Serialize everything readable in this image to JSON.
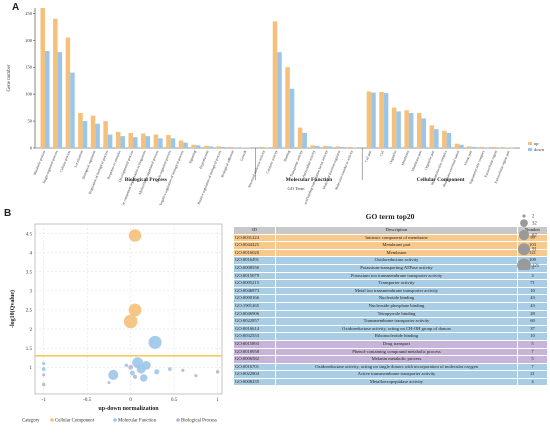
{
  "panel_a_label": "A",
  "panel_b_label": "B",
  "colors": {
    "up": "#f5c07a",
    "down": "#9cc6e8",
    "cc_row": "#f7c98c",
    "mf_row": "#a9cde4",
    "bp_row": "#c7b5d9",
    "threshold": "#f5c242",
    "cc_dot": "#f5c07a",
    "mf_dot": "#9cc6e8",
    "bp_dot": "#b9b3d6"
  },
  "chart_data": [
    {
      "type": "bar",
      "title": "",
      "ylabel": "Gene number",
      "xlabel": "GO Term",
      "ylim": [
        0,
        260
      ],
      "yticks": [
        0,
        50,
        100,
        150,
        200,
        250
      ],
      "legend": {
        "position": "right",
        "entries": [
          "up",
          "down"
        ]
      },
      "groups": [
        {
          "name": "Biological Process",
          "categories": [
            "Metabolic process",
            "Single-organism process",
            "Cellular process",
            "Localization",
            "Biological regulation",
            "Regulation of biological process",
            "Response to stimulus",
            "Developmental process",
            "Cellular component organization or biogenesis",
            "Multicellular organismal process",
            "Multi-organism process",
            "Negative regulation of biological process",
            "Signaling",
            "Reproduction",
            "Positive regulation of biological process",
            "Biological adhesion",
            "Growth"
          ],
          "up": [
            260,
            240,
            205,
            65,
            60,
            50,
            30,
            28,
            27,
            25,
            24,
            14,
            6,
            4,
            3,
            2,
            1
          ],
          "down": [
            180,
            178,
            140,
            50,
            45,
            25,
            22,
            20,
            22,
            18,
            18,
            10,
            5,
            3,
            2,
            1,
            1
          ]
        },
        {
          "name": "Molecular Function",
          "categories": [
            "Structural molecule activity",
            "Catalytic activity",
            "Binding",
            "Transporter activity",
            "Antioxidant activity",
            "Nucleic acid binding transcription factor activity",
            "Molecular function regulator",
            "Molecular transducer activity"
          ],
          "up": [
            2,
            235,
            150,
            38,
            5,
            4,
            3,
            2
          ],
          "down": [
            1,
            178,
            110,
            28,
            4,
            3,
            2,
            1
          ]
        },
        {
          "name": "Cellular Component",
          "categories": [
            "Cell part",
            "Cell",
            "Organelle",
            "Membrane",
            "Membrane part",
            "Organelle part",
            "Macromolecular complex",
            "Membrane-enclosed lumen",
            "Virion part",
            "Supramolecular complex",
            "Extracellular region",
            "Extracellular region part"
          ],
          "up": [
            105,
            104,
            75,
            70,
            65,
            42,
            32,
            8,
            3,
            2,
            2,
            1
          ],
          "down": [
            103,
            102,
            68,
            65,
            55,
            35,
            28,
            6,
            2,
            1,
            1,
            1
          ]
        }
      ]
    },
    {
      "type": "scatter",
      "title": "",
      "xlabel": "up-down normalization",
      "ylabel": "-log10(Qvalue)",
      "xlim": [
        -1.1,
        1.05
      ],
      "ylim": [
        0.3,
        4.75
      ],
      "xticks": [
        -1.0,
        -0.5,
        0.0,
        0.5,
        1.0
      ],
      "yticks": [
        1.0,
        1.5,
        2.0,
        2.5,
        3.0,
        3.5,
        4.0,
        4.5
      ],
      "threshold_y": 1.3,
      "size_legend": [
        2,
        32,
        62,
        91,
        121
      ],
      "category_legend": {
        "title": "Category",
        "entries": [
          "Cellular Component",
          "Molecular Function",
          "Biological Process"
        ]
      },
      "points": [
        {
          "x": 0.05,
          "y": 4.45,
          "size": 99,
          "category": "cc"
        },
        {
          "x": 0.05,
          "y": 2.5,
          "size": 103,
          "category": "cc"
        },
        {
          "x": 0.0,
          "y": 2.2,
          "size": 121,
          "category": "cc"
        },
        {
          "x": 0.28,
          "y": 1.65,
          "size": 109,
          "category": "mf"
        },
        {
          "x": 0.08,
          "y": 1.12,
          "size": 71,
          "category": "mf"
        },
        {
          "x": 0.18,
          "y": 1.05,
          "size": 43,
          "category": "mf"
        },
        {
          "x": 0.12,
          "y": 0.95,
          "size": 43,
          "category": "mf"
        },
        {
          "x": -0.05,
          "y": 1.05,
          "size": 3,
          "category": "mf"
        },
        {
          "x": 0.02,
          "y": 0.85,
          "size": 10,
          "category": "mf"
        },
        {
          "x": 0.15,
          "y": 0.72,
          "size": 28,
          "category": "mf"
        },
        {
          "x": 0.3,
          "y": 0.88,
          "size": 10,
          "category": "mf"
        },
        {
          "x": 0.45,
          "y": 0.95,
          "size": 4,
          "category": "mf"
        },
        {
          "x": -0.2,
          "y": 0.8,
          "size": 60,
          "category": "mf"
        },
        {
          "x": -1.0,
          "y": 1.1,
          "size": 2,
          "category": "mf"
        },
        {
          "x": -1.0,
          "y": 0.95,
          "size": 4,
          "category": "mf"
        },
        {
          "x": -1.0,
          "y": 0.8,
          "size": 2,
          "category": "bp"
        },
        {
          "x": -1.0,
          "y": 0.55,
          "size": 3,
          "category": "bp"
        },
        {
          "x": -0.25,
          "y": 0.6,
          "size": 2,
          "category": "mf"
        },
        {
          "x": 0.6,
          "y": 0.92,
          "size": 2,
          "category": "bp"
        },
        {
          "x": 0.75,
          "y": 0.78,
          "size": 2,
          "category": "bp"
        },
        {
          "x": 1.0,
          "y": 0.88,
          "size": 3,
          "category": "bp"
        },
        {
          "x": 0.0,
          "y": 1.0,
          "size": 8,
          "category": "bp"
        },
        {
          "x": 0.05,
          "y": 0.75,
          "size": 5,
          "category": "bp"
        }
      ]
    },
    {
      "type": "table",
      "title": "GO term top20",
      "columns": [
        "ID",
        "Description",
        "Number"
      ],
      "rows": [
        {
          "id": "GO:0031224",
          "desc": "Intrinsic component of membrane",
          "num": "99",
          "cat": "cc"
        },
        {
          "id": "GO:0044425",
          "desc": "Membrane part",
          "num": "103",
          "cat": "cc"
        },
        {
          "id": "GO:0016020",
          "desc": "Membrane",
          "num": "121",
          "cat": "cc"
        },
        {
          "id": "GO:0016491",
          "desc": "Oxidoreductase activity",
          "num": "109",
          "cat": "mf"
        },
        {
          "id": "GO:0008556",
          "desc": "Potassium-transporting ATPase activity",
          "num": "3",
          "cat": "mf"
        },
        {
          "id": "GO:0015079",
          "desc": "Potassium ion transmembrane transporter activity",
          "num": "3",
          "cat": "mf"
        },
        {
          "id": "GO:0005215",
          "desc": "Transporter activity",
          "num": "71",
          "cat": "mf"
        },
        {
          "id": "GO:0046873",
          "desc": "Metal ion transmembrane transporter activity",
          "num": "10",
          "cat": "mf"
        },
        {
          "id": "GO:0000166",
          "desc": "Nucleotide binding",
          "num": "43",
          "cat": "mf"
        },
        {
          "id": "GO:1901265",
          "desc": "Nucleoside phosphate binding",
          "num": "43",
          "cat": "mf"
        },
        {
          "id": "GO:0046906",
          "desc": "Tetrapyrrole binding",
          "num": "28",
          "cat": "mf"
        },
        {
          "id": "GO:0022857",
          "desc": "Transmembrane transporter activity",
          "num": "60",
          "cat": "mf"
        },
        {
          "id": "GO:0016614",
          "desc": "Oxidoreductase activity, acting on CH-OH group of donors",
          "num": "37",
          "cat": "mf"
        },
        {
          "id": "GO:0032553",
          "desc": "Ribonucleotide binding",
          "num": "10",
          "cat": "mf"
        },
        {
          "id": "GO:0015893",
          "desc": "Drug transport",
          "num": "5",
          "cat": "bp"
        },
        {
          "id": "GO:0018958",
          "desc": "Phenol-containing compound metabolic process",
          "num": "7",
          "cat": "bp"
        },
        {
          "id": "GO:0006582",
          "desc": "Melanin metabolic process",
          "num": "5",
          "cat": "bp"
        },
        {
          "id": "GO:0016701",
          "desc": "Oxidoreductase activity, acting on single donors with incorporation of molecular oxygen",
          "num": "7",
          "cat": "mf"
        },
        {
          "id": "GO:0022804",
          "desc": "Active transmembrane transporter activity",
          "num": "21",
          "cat": "mf"
        },
        {
          "id": "GO:0008235",
          "desc": "Metalloexopeptidase activity",
          "num": "4",
          "cat": "mf"
        }
      ]
    }
  ]
}
